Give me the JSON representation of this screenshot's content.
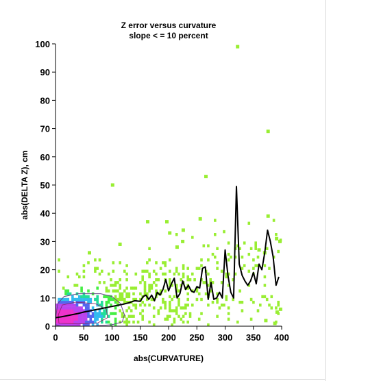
{
  "chart_data": {
    "type": "scatter",
    "title": "Z error versus curvature",
    "subtitle": "slope < = 10 percent",
    "xlabel": "abs(CURVATURE)",
    "ylabel": "abs(DELTA Z), cm",
    "xlim": [
      0,
      400
    ],
    "ylim": [
      0,
      100
    ],
    "xticks": [
      "0",
      "50",
      "100",
      "150",
      "200",
      "250",
      "300",
      "350",
      "400"
    ],
    "yticks": [
      "0",
      "10",
      "20",
      "30",
      "40",
      "50",
      "60",
      "70",
      "80",
      "90",
      "100"
    ],
    "grid": false,
    "legend": "none",
    "colors": {
      "sparse": "#99ee33",
      "low": "#44ee44",
      "medium": "#22dd99",
      "dense": "#33bbee",
      "high": "#5566ee",
      "very_high": "#bb44ee",
      "peak": "#ee33cc",
      "mean_line": "#000000",
      "contour": "#664488"
    },
    "mean_line": {
      "x": [
        0,
        10,
        20,
        30,
        40,
        50,
        60,
        70,
        80,
        90,
        100,
        110,
        120,
        130,
        140,
        150,
        155,
        160,
        165,
        170,
        175,
        180,
        185,
        190,
        195,
        200,
        205,
        210,
        215,
        220,
        225,
        230,
        235,
        240,
        245,
        250,
        255,
        260,
        265,
        270,
        275,
        280,
        285,
        290,
        295,
        300,
        305,
        310,
        315,
        320,
        325,
        330,
        335,
        340,
        345,
        350,
        355,
        360,
        365,
        370,
        375,
        380,
        385,
        390,
        395
      ],
      "y": [
        3,
        3.3,
        3.7,
        4.1,
        4.5,
        5,
        5.4,
        5.8,
        6.2,
        6.6,
        7,
        7.4,
        7.8,
        8.3,
        9,
        8.8,
        10.5,
        11,
        9.5,
        11,
        9,
        12,
        11,
        13,
        16.5,
        12.5,
        15,
        17,
        10,
        11.5,
        16,
        13,
        14.5,
        12.5,
        12,
        14,
        13.5,
        20.5,
        21,
        9.5,
        15.5,
        9.5,
        10,
        12,
        10,
        27,
        18,
        12,
        10,
        49.5,
        22,
        18,
        16,
        14.5,
        16,
        19,
        15,
        22,
        20,
        26,
        34,
        30,
        24.5,
        14.5,
        17.5
      ]
    },
    "outliers": [
      {
        "x": 322,
        "y": 99
      },
      {
        "x": 376,
        "y": 69
      },
      {
        "x": 101,
        "y": 50
      },
      {
        "x": 266,
        "y": 53
      },
      {
        "x": 256,
        "y": 38
      },
      {
        "x": 163,
        "y": 37
      },
      {
        "x": 197,
        "y": 37
      },
      {
        "x": 376,
        "y": 39
      },
      {
        "x": 391,
        "y": 31
      },
      {
        "x": 397,
        "y": 30
      },
      {
        "x": 114,
        "y": 29
      },
      {
        "x": 225,
        "y": 30
      },
      {
        "x": 60,
        "y": 26
      },
      {
        "x": 360,
        "y": 27
      },
      {
        "x": 370,
        "y": 26
      },
      {
        "x": 202,
        "y": 33
      },
      {
        "x": 226,
        "y": 34
      },
      {
        "x": 215,
        "y": 28
      },
      {
        "x": 392,
        "y": 5
      },
      {
        "x": 398,
        "y": 6
      },
      {
        "x": 388,
        "y": 1
      },
      {
        "x": 372,
        "y": 2
      }
    ]
  }
}
